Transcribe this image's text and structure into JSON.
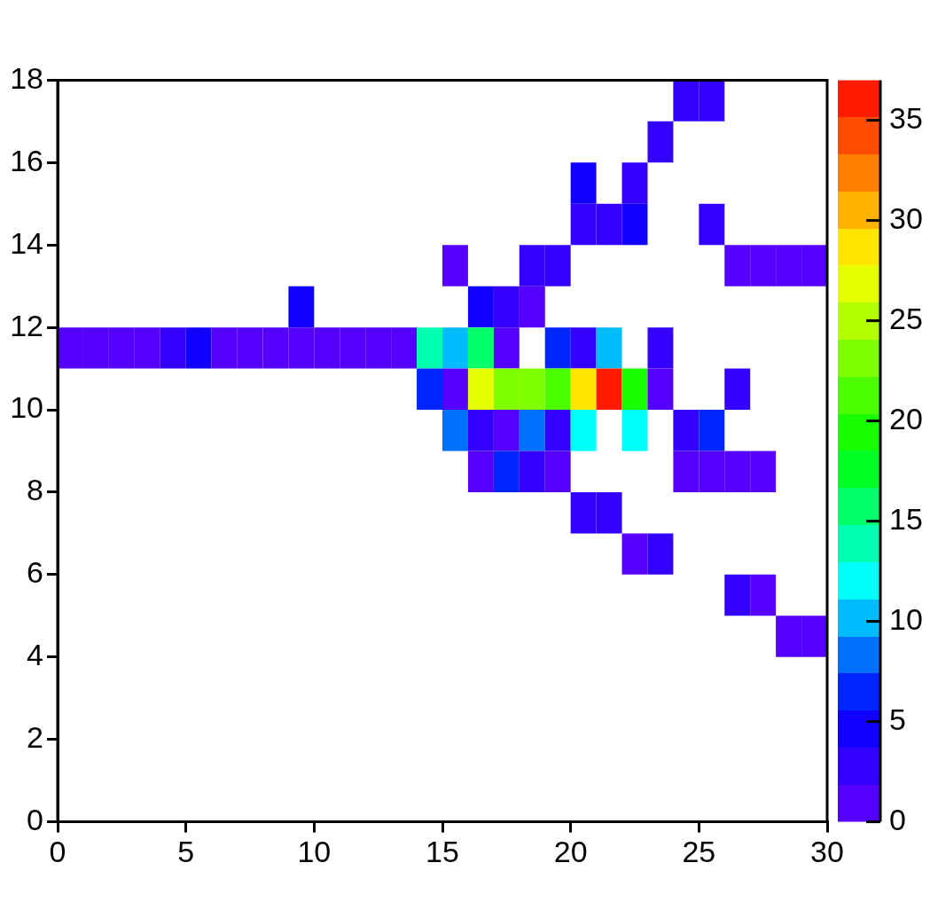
{
  "chart_data": {
    "type": "heatmap",
    "x": [
      0.5,
      1.5,
      2.5,
      3.5,
      4.5,
      5.5,
      6.5,
      7.5,
      8.5,
      9.5,
      10.5,
      11.5,
      12.5,
      13.5,
      14.5,
      15.5,
      16.5,
      17.5,
      18.5,
      19.5,
      20.5,
      21.5,
      22.5,
      23.5,
      24.5,
      25.5,
      26.5,
      27.5,
      28.5,
      29.5
    ],
    "y": [
      17.5,
      16.5,
      15.5,
      14.5,
      13.5,
      12.5,
      11.5,
      10.5,
      9.5,
      8.5,
      7.5,
      6.5,
      5.5,
      4.5
    ],
    "cells": [
      [
        null,
        null,
        null,
        null,
        null,
        null,
        null,
        null,
        null,
        null,
        null,
        null,
        null,
        null,
        null,
        null,
        null,
        null,
        null,
        null,
        null,
        null,
        null,
        null,
        3,
        3,
        null,
        null,
        null,
        null
      ],
      [
        null,
        null,
        null,
        null,
        null,
        null,
        null,
        null,
        null,
        null,
        null,
        null,
        null,
        null,
        null,
        null,
        null,
        null,
        null,
        null,
        null,
        null,
        null,
        3,
        null,
        null,
        null,
        null,
        null,
        null
      ],
      [
        null,
        null,
        null,
        null,
        null,
        null,
        null,
        null,
        null,
        null,
        null,
        null,
        null,
        null,
        null,
        null,
        null,
        null,
        null,
        null,
        5,
        null,
        3,
        null,
        null,
        null,
        null,
        null,
        null,
        null
      ],
      [
        null,
        null,
        null,
        null,
        null,
        null,
        null,
        null,
        null,
        null,
        null,
        null,
        null,
        null,
        null,
        null,
        null,
        null,
        null,
        null,
        3,
        3,
        4,
        null,
        null,
        3,
        null,
        null,
        null,
        null
      ],
      [
        null,
        null,
        null,
        null,
        null,
        null,
        null,
        null,
        null,
        null,
        null,
        null,
        null,
        null,
        null,
        1,
        null,
        null,
        3,
        3,
        null,
        null,
        null,
        null,
        null,
        null,
        1,
        1,
        1,
        1
      ],
      [
        null,
        null,
        null,
        null,
        null,
        null,
        null,
        null,
        null,
        5,
        null,
        null,
        null,
        null,
        null,
        null,
        5,
        3,
        1,
        null,
        null,
        null,
        null,
        null,
        null,
        null,
        null,
        null,
        null,
        null
      ],
      [
        1,
        1,
        1,
        1,
        3,
        4,
        1,
        1,
        1,
        1,
        1,
        1,
        1,
        1,
        14,
        10,
        16,
        1,
        null,
        7,
        3,
        10,
        null,
        3,
        null,
        null,
        null,
        null,
        null,
        null
      ],
      [
        null,
        null,
        null,
        null,
        null,
        null,
        null,
        null,
        null,
        null,
        null,
        null,
        null,
        null,
        7,
        1,
        27,
        24,
        23,
        21,
        29,
        36,
        19,
        1,
        null,
        null,
        3,
        null,
        null,
        null
      ],
      [
        null,
        null,
        null,
        null,
        null,
        null,
        null,
        null,
        null,
        null,
        null,
        null,
        null,
        null,
        null,
        9,
        3,
        1,
        9,
        3,
        12,
        null,
        12,
        null,
        3,
        7,
        null,
        null,
        null,
        null
      ],
      [
        null,
        null,
        null,
        null,
        null,
        null,
        null,
        null,
        null,
        null,
        null,
        null,
        null,
        null,
        null,
        null,
        1,
        7,
        3,
        1,
        null,
        null,
        null,
        null,
        1,
        1,
        1,
        1,
        null,
        null
      ],
      [
        null,
        null,
        null,
        null,
        null,
        null,
        null,
        null,
        null,
        null,
        null,
        null,
        null,
        null,
        null,
        null,
        null,
        null,
        null,
        null,
        3,
        3,
        null,
        null,
        null,
        null,
        null,
        null,
        null,
        null
      ],
      [
        null,
        null,
        null,
        null,
        null,
        null,
        null,
        null,
        null,
        null,
        null,
        null,
        null,
        null,
        null,
        null,
        null,
        null,
        null,
        null,
        null,
        null,
        1,
        3,
        null,
        null,
        null,
        null,
        null,
        null
      ],
      [
        null,
        null,
        null,
        null,
        null,
        null,
        null,
        null,
        null,
        null,
        null,
        null,
        null,
        null,
        null,
        null,
        null,
        null,
        null,
        null,
        null,
        null,
        null,
        null,
        null,
        null,
        3,
        1,
        null,
        null
      ],
      [
        null,
        null,
        null,
        null,
        null,
        null,
        null,
        null,
        null,
        null,
        null,
        null,
        null,
        null,
        null,
        null,
        null,
        null,
        null,
        null,
        null,
        null,
        null,
        null,
        null,
        null,
        null,
        null,
        1,
        1
      ]
    ],
    "xlim": [
      0,
      30
    ],
    "xticks": [
      0,
      5,
      10,
      15,
      20,
      25,
      30
    ],
    "ylim": [
      0,
      18
    ],
    "yticks": [
      0,
      2,
      4,
      6,
      8,
      10,
      12,
      14,
      16,
      18
    ],
    "clim": [
      0,
      37
    ],
    "cticks": [
      0,
      5,
      10,
      15,
      20,
      25,
      30,
      35
    ]
  }
}
